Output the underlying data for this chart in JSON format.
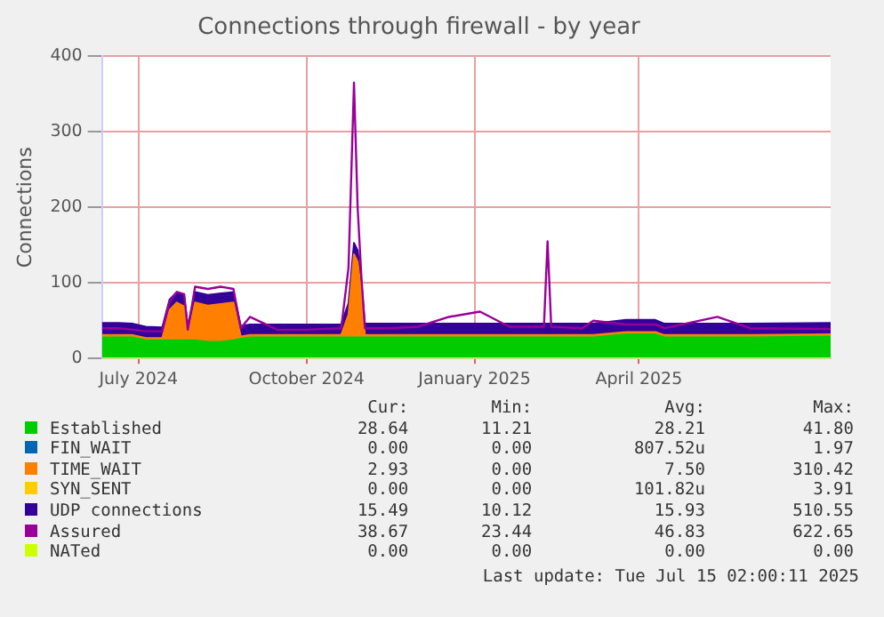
{
  "chart_data": {
    "type": "area",
    "title": "Connections through firewall - by year",
    "ylabel": "Connections",
    "x": [
      "2024-06-11",
      "2024-06-20",
      "2024-06-28",
      "2024-07-05",
      "2024-07-14",
      "2024-07-18",
      "2024-07-22",
      "2024-07-26",
      "2024-07-28",
      "2024-08-01",
      "2024-08-08",
      "2024-08-15",
      "2024-08-22",
      "2024-08-26",
      "2024-08-31",
      "2024-09-15",
      "2024-10-01",
      "2024-10-20",
      "2024-10-24",
      "2024-10-27",
      "2024-10-29",
      "2024-10-31",
      "2024-11-02",
      "2024-11-15",
      "2024-12-01",
      "2024-12-18",
      "2025-01-04",
      "2025-01-20",
      "2025-02-08",
      "2025-02-10",
      "2025-02-12",
      "2025-03-01",
      "2025-03-07",
      "2025-03-25",
      "2025-04-10",
      "2025-04-15",
      "2025-05-14",
      "2025-06-01",
      "2025-07-15"
    ],
    "series": [
      {
        "name": "Established",
        "type": "area",
        "color": "#00cc00",
        "values": [
          28,
          28,
          28,
          24,
          24,
          24,
          24,
          24,
          24,
          24,
          22,
          22,
          24,
          26,
          28,
          28,
          28,
          28,
          28,
          28,
          28,
          28,
          28,
          28,
          28,
          28,
          28,
          28,
          28,
          28,
          28,
          28,
          28,
          32,
          32,
          28,
          28,
          28,
          29
        ]
      },
      {
        "name": "FIN_WAIT",
        "type": "area",
        "color": "#0066b3",
        "values": [
          null,
          null,
          null,
          null,
          null,
          null,
          null,
          null,
          null,
          null,
          null,
          null,
          null,
          null,
          null,
          null,
          null,
          null,
          null,
          null,
          null,
          null,
          null,
          null,
          null,
          null,
          null,
          null,
          null,
          null,
          null,
          null,
          null,
          null,
          null,
          null,
          null,
          null,
          null
        ]
      },
      {
        "name": "TIME_WAIT",
        "type": "area",
        "color": "#ff8000",
        "values": [
          3,
          3,
          3,
          3,
          3,
          40,
          50,
          45,
          5,
          50,
          48,
          50,
          50,
          3,
          3,
          3,
          3,
          3,
          30,
          110,
          100,
          60,
          3,
          3,
          3,
          3,
          3,
          3,
          3,
          3,
          3,
          3,
          3,
          3,
          3,
          3,
          3,
          3,
          3
        ]
      },
      {
        "name": "SYN_SENT",
        "type": "area",
        "color": "#ffcc00",
        "values": [
          null,
          null,
          null,
          null,
          null,
          null,
          null,
          null,
          null,
          null,
          null,
          null,
          null,
          null,
          null,
          null,
          null,
          null,
          null,
          null,
          null,
          null,
          null,
          null,
          null,
          null,
          null,
          null,
          null,
          null,
          null,
          null,
          null,
          null,
          null,
          null,
          null,
          null,
          null
        ]
      },
      {
        "name": "UDP connections",
        "type": "area",
        "color": "#330099",
        "values": [
          16,
          16,
          15,
          15,
          14,
          14,
          14,
          14,
          14,
          14,
          14,
          14,
          14,
          14,
          14,
          14,
          14,
          14,
          15,
          15,
          15,
          15,
          15,
          15,
          15,
          15,
          15,
          15,
          15,
          15,
          15,
          15,
          15,
          16,
          16,
          15,
          15,
          15,
          15
        ]
      },
      {
        "name": "Assured",
        "type": "line",
        "color": "#990099",
        "values": [
          40,
          40,
          38,
          36,
          36,
          75,
          88,
          85,
          38,
          95,
          92,
          95,
          92,
          40,
          55,
          38,
          38,
          40,
          120,
          365,
          200,
          110,
          40,
          40,
          42,
          55,
          62,
          42,
          42,
          155,
          42,
          40,
          50,
          45,
          45,
          40,
          55,
          40,
          39
        ]
      },
      {
        "name": "NATed",
        "type": "line",
        "color": "#ccff00",
        "values": [
          0,
          0,
          0,
          0,
          0,
          0,
          0,
          0,
          0,
          0,
          0,
          0,
          0,
          0,
          0,
          0,
          0,
          0,
          0,
          0,
          0,
          0,
          0,
          0,
          0,
          0,
          0,
          0,
          0,
          0,
          0,
          0,
          0,
          0,
          0,
          0,
          0,
          0,
          0
        ]
      }
    ],
    "stacked": true,
    "xlim": [
      "2024-06-11",
      "2025-07-15"
    ],
    "xticks": [
      {
        "value": "2024-07-01",
        "label": "July 2024"
      },
      {
        "value": "2024-10-01",
        "label": "October 2024"
      },
      {
        "value": "2025-01-01",
        "label": "January 2025"
      },
      {
        "value": "2025-04-01",
        "label": "April 2025"
      }
    ],
    "ylim": [
      0,
      400
    ],
    "yticks": [
      0,
      100,
      200,
      300,
      400
    ],
    "grid": true,
    "legend": "bottom",
    "marker": "none",
    "annotations": [
      "Cur:\tMin:\tAvg:\tMax:",
      "28.64\t11.21\t28.21\t41.80",
      "0.00\t0.00\t807.52u\t1.97",
      "2.93\t0.00\t7.50\t310.42",
      "0.00\t0.00\t101.82u\t3.91",
      "15.49\t10.12\t15.93\t510.55",
      "38.67\t23.44\t46.83\t622.65",
      "0.00\t0.00\t0.00\t0.00",
      "Last update: Tue Jul 15 02:00:11 2025"
    ]
  }
}
